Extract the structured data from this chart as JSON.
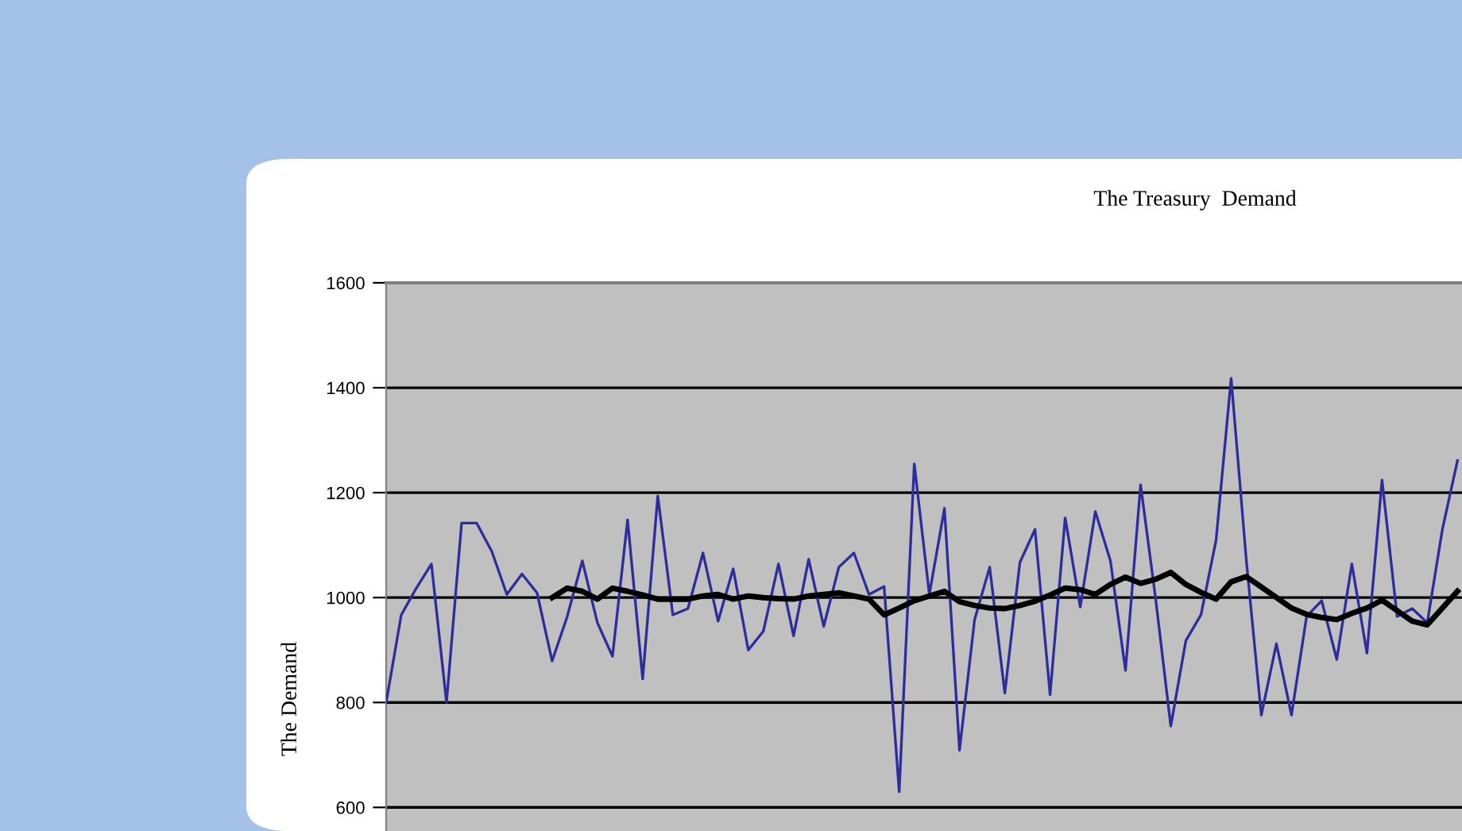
{
  "chart_data": {
    "type": "line",
    "title": "The Treasury  Demand",
    "ylabel": "The Demand",
    "categories": [
      null,
      null,
      null,
      null,
      null,
      null,
      null,
      null,
      null,
      null,
      null,
      null,
      null,
      null,
      null,
      null,
      null,
      null,
      null,
      null,
      null,
      null,
      null,
      null,
      null,
      null,
      null,
      null,
      null,
      null,
      null,
      null,
      null,
      null,
      null,
      null,
      null,
      null,
      null,
      null,
      null,
      null,
      null,
      null,
      null,
      null,
      null,
      null,
      null,
      null,
      null,
      null,
      null,
      null,
      null,
      null,
      null,
      null,
      null,
      null,
      null,
      null,
      null,
      null,
      null,
      null,
      null,
      null,
      null,
      null,
      null,
      null
    ],
    "series": [
      {
        "color": "#2e2e9a",
        "values": [
          800,
          967,
          1018,
          1064,
          800,
          1142,
          1142,
          1088,
          1006,
          1045,
          1009,
          879,
          964,
          1070,
          952,
          888,
          1148,
          845,
          1194,
          967,
          979,
          1085,
          955,
          1055,
          900,
          936,
          1064,
          927,
          1073,
          945,
          1058,
          1085,
          1006,
          1021,
          630,
          1255,
          1006,
          1170,
          709,
          958,
          1058,
          818,
          1067,
          1130,
          815,
          1152,
          982,
          1164,
          1070,
          861,
          1215,
          997,
          755,
          918,
          967,
          1109,
          1418,
          1073,
          776,
          912,
          776,
          964,
          994,
          882,
          1064,
          894,
          1224,
          964,
          979,
          952,
          1130,
          1261
        ]
      },
      {
        "color": "#000000",
        "values": [
          null,
          null,
          null,
          null,
          null,
          null,
          null,
          null,
          null,
          null,
          null,
          1000,
          1018,
          1012,
          997,
          1018,
          1012,
          1005,
          997,
          997,
          997,
          1003,
          1006,
          997,
          1003,
          1000,
          998,
          997,
          1003,
          1006,
          1009,
          1003,
          997,
          967,
          980,
          994,
          1003,
          1012,
          992,
          985,
          980,
          979,
          985,
          993,
          1005,
          1018,
          1015,
          1006,
          1025,
          1039,
          1027,
          1035,
          1048,
          1025,
          1010,
          997,
          1030,
          1040,
          1020,
          1000,
          980,
          968,
          962,
          958,
          970,
          980,
          995,
          975,
          955,
          948,
          980,
          1012
        ]
      }
    ],
    "ylim": [
      555,
      1600
    ],
    "yticks": [
      600,
      800,
      1000,
      1200,
      1400,
      1600
    ],
    "grid": "y",
    "marker": "none",
    "line_style": "solid",
    "legend": false
  }
}
